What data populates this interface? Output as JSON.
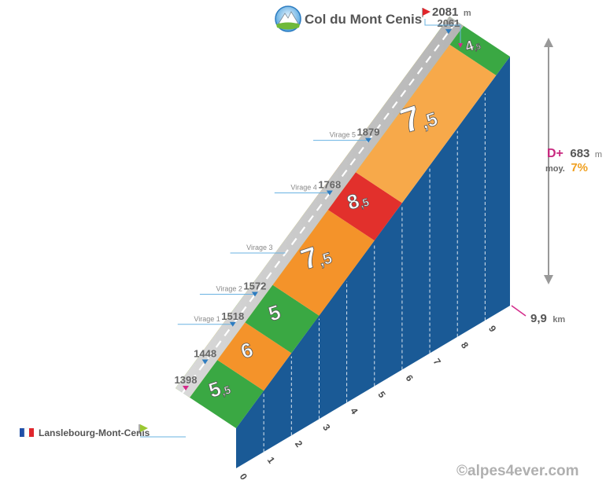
{
  "summit": {
    "name": "Col du Mont Cenis",
    "altitude": "2081",
    "unit": "m"
  },
  "start": {
    "name": "Lanslebourg-Mont-Cenis",
    "altitude": "1398"
  },
  "stats": {
    "dplus_label": "D+",
    "dplus_value": "683",
    "dplus_unit": "m",
    "avg_label": "moy.",
    "avg_value": "7%"
  },
  "distance": {
    "value": "9,9",
    "unit": "km"
  },
  "copyright": "©alpes4ever.com",
  "colors": {
    "road": "#c2c2c2",
    "edge": "#c8dc28",
    "face": "#1a5a96",
    "g1": "#3aa843",
    "g2": "#f4932a",
    "g3": "#f7a94a",
    "g4": "#e2302c",
    "arrow": "#999999",
    "marker": "#d42a8a",
    "flag_green": "#9bc832",
    "flag_red": "#e0262c"
  },
  "chart_data": {
    "type": "area",
    "title": "Col du Mont Cenis",
    "xlabel": "",
    "ylabel": "",
    "x_unit": "km",
    "y_unit": "m",
    "xlim": [
      0,
      9.9
    ],
    "ylim": [
      1398,
      2081
    ],
    "x_ticks": [
      0,
      1,
      2,
      3,
      4,
      5,
      6,
      7,
      8,
      9
    ],
    "x_tick_labels": [
      "0",
      "1",
      "2",
      "3",
      "4",
      "5",
      "6",
      "7",
      "8",
      "9"
    ],
    "segments": [
      {
        "from_km": 0,
        "to_km": 1,
        "gradient": "5,5",
        "color": "#3aa843"
      },
      {
        "from_km": 1,
        "to_km": 2,
        "gradient": "6",
        "color": "#f4932a"
      },
      {
        "from_km": 2,
        "to_km": 3,
        "gradient": "5",
        "color": "#3aa843"
      },
      {
        "from_km": 3,
        "to_km": 5,
        "gradient": "7,5",
        "color": "#f4932a"
      },
      {
        "from_km": 5,
        "to_km": 6,
        "gradient": "8,5",
        "color": "#e2302c"
      },
      {
        "from_km": 6,
        "to_km": 9.4,
        "gradient": "7,5",
        "color": "#f7a94a"
      },
      {
        "from_km": 9.4,
        "to_km": 9.9,
        "gradient": "4,5",
        "color": "#3aa843"
      }
    ],
    "altitude_markers": [
      {
        "km": 0,
        "altitude": "1398",
        "label": ""
      },
      {
        "km": 0.7,
        "altitude": "1448",
        "label": ""
      },
      {
        "km": 1.7,
        "altitude": "1518",
        "label": "Virage 1"
      },
      {
        "km": 2.5,
        "altitude": "1572",
        "label": "Virage 2"
      },
      {
        "km": 3.6,
        "altitude": "",
        "label": "Virage 3"
      },
      {
        "km": 5.2,
        "altitude": "1768",
        "label": "Virage 4"
      },
      {
        "km": 6.6,
        "altitude": "1879",
        "label": "Virage 5"
      },
      {
        "km": 9.5,
        "altitude": "2061",
        "label": ""
      }
    ]
  }
}
